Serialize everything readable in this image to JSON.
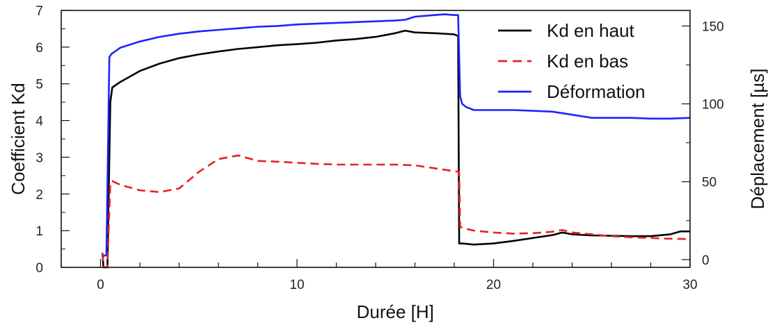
{
  "chart_data": {
    "type": "line",
    "xlabel": "Durée [H]",
    "ylabel_left": "Coefficient Kd",
    "ylabel_right": "Déplacement [µs]",
    "xlim": [
      -2,
      30
    ],
    "ylim_left": [
      0,
      7
    ],
    "ylim_right": [
      -5,
      160
    ],
    "x_ticks": [
      0,
      10,
      20,
      30
    ],
    "y_left_ticks": [
      0,
      1,
      2,
      3,
      4,
      5,
      6,
      7
    ],
    "y_right_ticks": [
      0,
      50,
      100,
      150
    ],
    "grid": false,
    "legend_position": "top-right",
    "legend": [
      "Kd en haut",
      "Kd en bas",
      "Déformation"
    ],
    "series": [
      {
        "name": "Kd en haut",
        "axis": "left",
        "color": "#000000",
        "style": "solid",
        "x": [
          0.1,
          0.15,
          0.35,
          0.5,
          0.6,
          1,
          2,
          3,
          4,
          5,
          6,
          7,
          8,
          9,
          10,
          11,
          12,
          13,
          14,
          15,
          15.5,
          16,
          17,
          18,
          18.2,
          18.25,
          18.4,
          19,
          20,
          21,
          22,
          23,
          23.5,
          24,
          25,
          26,
          27,
          28,
          29,
          29.5,
          30
        ],
        "y": [
          0.4,
          0.0,
          0.0,
          4.5,
          4.9,
          5.05,
          5.35,
          5.55,
          5.7,
          5.8,
          5.88,
          5.95,
          6.0,
          6.05,
          6.08,
          6.12,
          6.18,
          6.22,
          6.28,
          6.38,
          6.45,
          6.4,
          6.38,
          6.35,
          6.3,
          0.65,
          0.65,
          0.62,
          0.65,
          0.72,
          0.8,
          0.88,
          0.95,
          0.9,
          0.87,
          0.86,
          0.85,
          0.85,
          0.9,
          0.98,
          0.98
        ]
      },
      {
        "name": "Kd en bas",
        "axis": "left",
        "color": "#e82020",
        "style": "dashed",
        "x": [
          0.1,
          0.15,
          0.35,
          0.5,
          0.6,
          1,
          2,
          3,
          4,
          5,
          6,
          7,
          8,
          9,
          10,
          11,
          12,
          13,
          14,
          15,
          16,
          17,
          18,
          18.25,
          18.3,
          18.6,
          19,
          20,
          21,
          22,
          23,
          23.5,
          24,
          25,
          26,
          27,
          28,
          29,
          30
        ],
        "y": [
          0.4,
          0.0,
          0.0,
          2.3,
          2.35,
          2.25,
          2.1,
          2.05,
          2.15,
          2.6,
          2.95,
          3.05,
          2.9,
          2.88,
          2.85,
          2.82,
          2.8,
          2.8,
          2.8,
          2.8,
          2.78,
          2.7,
          2.62,
          2.6,
          1.1,
          1.05,
          1.0,
          0.95,
          0.92,
          0.93,
          0.97,
          1.02,
          0.95,
          0.9,
          0.85,
          0.82,
          0.8,
          0.78,
          0.77
        ]
      },
      {
        "name": "Déformation",
        "axis": "right",
        "color": "#1f22ff",
        "style": "solid",
        "x": [
          0.1,
          0.3,
          0.45,
          0.55,
          1,
          2,
          3,
          4,
          5,
          6,
          7,
          8,
          9,
          10,
          11,
          12,
          13,
          14,
          15,
          15.5,
          16,
          17,
          17.5,
          18,
          18.2,
          18.3,
          18.4,
          18.6,
          19,
          20,
          21,
          22,
          23,
          24,
          25,
          26,
          27,
          28,
          29,
          30
        ],
        "y": [
          2,
          3,
          130,
          132,
          136,
          140,
          143,
          145,
          146.5,
          147.5,
          148.5,
          149.5,
          150,
          151,
          151.5,
          152,
          152.5,
          153,
          153.5,
          154,
          156,
          157,
          157.5,
          157,
          157,
          105,
          100,
          98,
          96,
          96,
          96,
          95.5,
          95,
          93,
          91,
          91,
          91,
          90.5,
          90.5,
          91
        ]
      }
    ]
  }
}
